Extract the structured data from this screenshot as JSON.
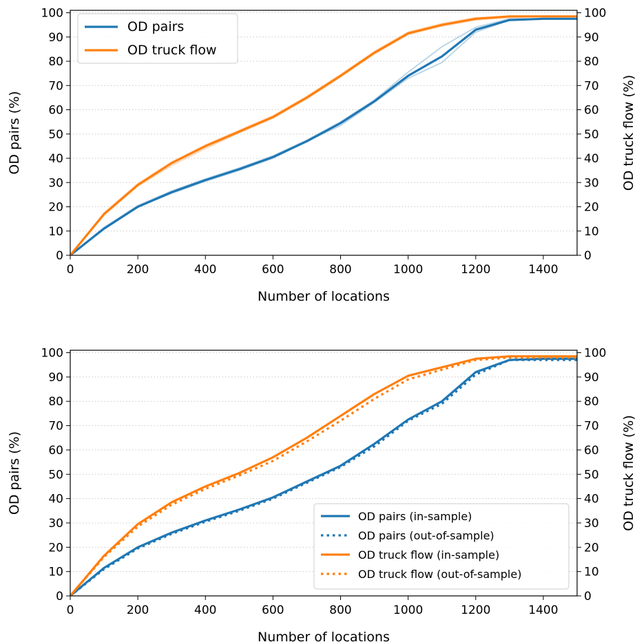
{
  "chart_data": [
    {
      "type": "line",
      "title": "",
      "xlabel": "Number of locations",
      "ylabel": "OD pairs (%)",
      "y2label": "OD truck flow (%)",
      "xlim": [
        0,
        1500
      ],
      "ylim": [
        0,
        101
      ],
      "y2lim": [
        0,
        101
      ],
      "xticks": [
        0,
        200,
        400,
        600,
        800,
        1000,
        1200,
        1400
      ],
      "yticks": [
        0,
        10,
        20,
        30,
        40,
        50,
        60,
        70,
        80,
        90,
        100
      ],
      "grid": "horizontal dotted",
      "legend_position": "top-left",
      "x": [
        0,
        100,
        200,
        300,
        400,
        500,
        600,
        700,
        800,
        900,
        1000,
        1100,
        1200,
        1300,
        1400,
        1500
      ],
      "series": [
        {
          "name": "OD pairs",
          "color": "#1f77b4",
          "style": "solid",
          "values": [
            0,
            11,
            20,
            26,
            31,
            35.5,
            40.5,
            47,
            54.5,
            63.5,
            74,
            82,
            93,
            97,
            97.5,
            97.5
          ]
        },
        {
          "name": "OD truck flow",
          "color": "#ff7f0e",
          "style": "solid",
          "values": [
            0,
            17,
            29,
            38,
            45,
            51,
            57,
            65,
            74,
            83.5,
            91.5,
            95,
            97.5,
            98.5,
            98.5,
            98.5
          ]
        }
      ],
      "faint_series": [
        {
          "color": "#1f77b4",
          "values": [
            0,
            11,
            20,
            25.5,
            30.5,
            35,
            40,
            47,
            53.5,
            63,
            73,
            79.5,
            92,
            97,
            97.5,
            97.5
          ]
        },
        {
          "color": "#1f77b4",
          "values": [
            0,
            11.5,
            20.5,
            26.5,
            31.5,
            36,
            41,
            47.5,
            55,
            64,
            75.5,
            86,
            94,
            97.5,
            97.5,
            97.5
          ]
        },
        {
          "color": "#ff7f0e",
          "values": [
            0,
            16.5,
            28.5,
            37,
            44,
            50.5,
            56.5,
            64.5,
            73.5,
            83,
            91,
            94.5,
            97,
            98,
            98.5,
            98.5
          ]
        },
        {
          "color": "#ff7f0e",
          "values": [
            0,
            17.5,
            29.5,
            38.5,
            45.5,
            51.5,
            57.5,
            65.5,
            74.5,
            84,
            92,
            95.5,
            98,
            98.5,
            98.5,
            98.5
          ]
        }
      ]
    },
    {
      "type": "line",
      "title": "",
      "xlabel": "Number of locations",
      "ylabel": "OD pairs (%)",
      "y2label": "OD truck flow (%)",
      "xlim": [
        0,
        1500
      ],
      "ylim": [
        0,
        101
      ],
      "y2lim": [
        0,
        101
      ],
      "xticks": [
        0,
        200,
        400,
        600,
        800,
        1000,
        1200,
        1400
      ],
      "yticks": [
        0,
        10,
        20,
        30,
        40,
        50,
        60,
        70,
        80,
        90,
        100
      ],
      "grid": "horizontal dotted",
      "legend_position": "bottom-right",
      "x": [
        0,
        100,
        200,
        300,
        400,
        500,
        600,
        700,
        800,
        900,
        1000,
        1100,
        1200,
        1300,
        1400,
        1500
      ],
      "series": [
        {
          "name": "OD pairs (in-sample)",
          "color": "#1f77b4",
          "style": "solid",
          "values": [
            0,
            11.5,
            20,
            26,
            31,
            35.5,
            40.5,
            47,
            53.5,
            62.5,
            72.5,
            80,
            92,
            97,
            97.5,
            97.5
          ]
        },
        {
          "name": "OD pairs (out-of-sample)",
          "color": "#1f77b4",
          "style": "dotted",
          "values": [
            0,
            11,
            19.5,
            25.5,
            30.5,
            35,
            40,
            46.5,
            53,
            61.5,
            72,
            79,
            91,
            97,
            97,
            97
          ]
        },
        {
          "name": "OD truck flow (in-sample)",
          "color": "#ff7f0e",
          "style": "solid",
          "values": [
            0,
            16.5,
            29.5,
            38.5,
            45,
            50.5,
            57,
            65,
            74,
            83,
            90.5,
            94,
            97.5,
            98.5,
            98.5,
            98.5
          ]
        },
        {
          "name": "OD truck flow (out-of-sample)",
          "color": "#ff7f0e",
          "style": "dotted",
          "values": [
            0,
            16,
            28.5,
            37.5,
            44,
            49.5,
            55.5,
            63.5,
            72,
            81,
            89,
            93,
            97,
            98,
            98,
            98
          ]
        }
      ]
    }
  ]
}
